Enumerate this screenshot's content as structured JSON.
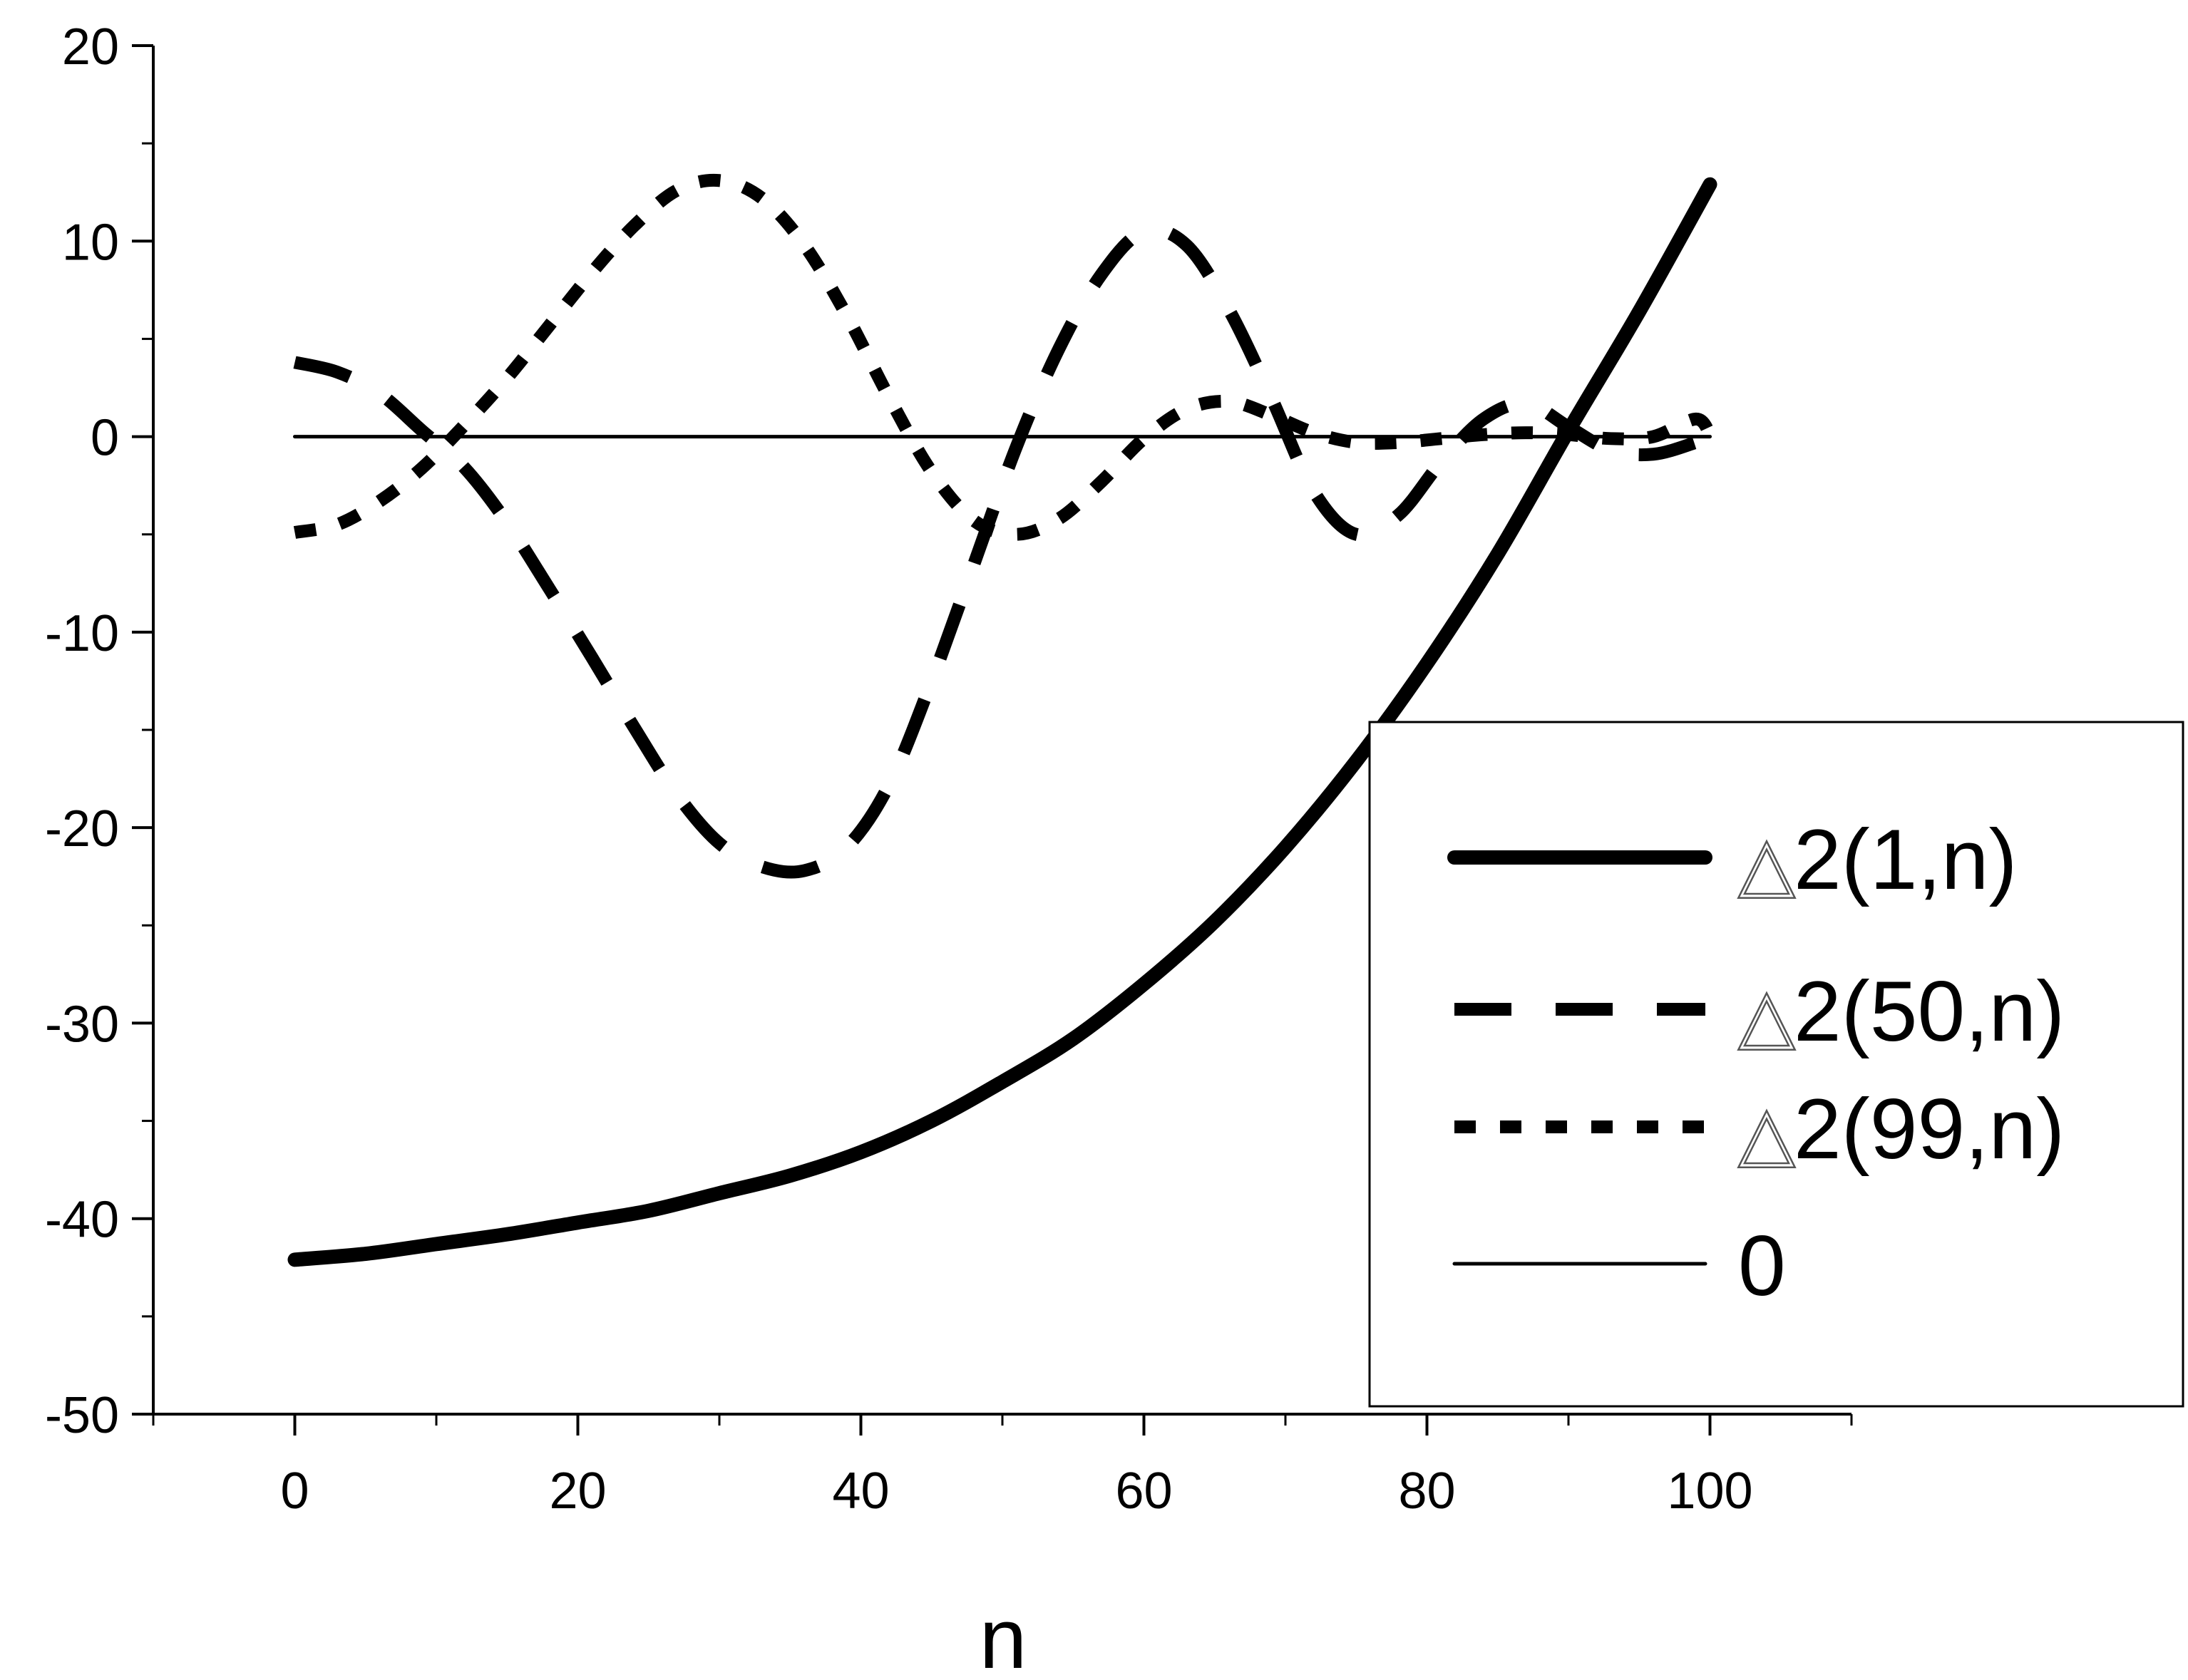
{
  "chart_data": {
    "type": "line",
    "xlabel": "n",
    "ylabel": "",
    "xlim": [
      -10,
      110
    ],
    "ylim": [
      -50,
      20
    ],
    "xticks": [
      0,
      20,
      40,
      60,
      80,
      100
    ],
    "xtick_labels": [
      "0",
      "20",
      "40",
      "60",
      "80",
      "100"
    ],
    "yticks": [
      20,
      10,
      0,
      -10,
      -20,
      -30,
      -40,
      -50
    ],
    "ytick_labels": [
      "20",
      "10",
      "0",
      "-10",
      "-20",
      "-30",
      "-40",
      "-50"
    ],
    "grid": false,
    "legend_position": "lower-right",
    "series": [
      {
        "name": "2(1,n)",
        "legend_symbol": "△",
        "style": "solid-thick",
        "x": [
          0,
          5,
          10,
          15,
          20,
          25,
          30,
          35,
          40,
          45,
          50,
          55,
          60,
          65,
          70,
          75,
          80,
          85,
          90,
          95,
          100
        ],
        "y": [
          -42.1,
          -41.8,
          -41.3,
          -40.8,
          -40.2,
          -39.6,
          -38.7,
          -37.8,
          -36.6,
          -35.0,
          -33.0,
          -30.8,
          -28.0,
          -24.8,
          -21.0,
          -16.6,
          -11.6,
          -6.0,
          0.3,
          6.4,
          12.9
        ]
      },
      {
        "name": "2(50,n)",
        "legend_symbol": "△",
        "style": "long-dash",
        "x": [
          0,
          3,
          6,
          9,
          12,
          15,
          18,
          21,
          24,
          27,
          30,
          33,
          36,
          39,
          42,
          45,
          48,
          51,
          54,
          57,
          60,
          63,
          66,
          69,
          72,
          75,
          78,
          81,
          84,
          87,
          90,
          93,
          96,
          99,
          100
        ],
        "y": [
          3.8,
          3.3,
          2.2,
          0.3,
          -1.6,
          -4.4,
          -7.8,
          -11.3,
          -14.9,
          -18.3,
          -20.8,
          -22.0,
          -22.2,
          -21.0,
          -17.8,
          -12.5,
          -6.5,
          -0.5,
          4.5,
          8.3,
          10.5,
          9.8,
          6.5,
          2.0,
          -2.8,
          -5.0,
          -4.0,
          -1.3,
          0.9,
          1.7,
          0.5,
          -0.7,
          -0.9,
          -0.3,
          0.0
        ]
      },
      {
        "name": "2(99,n)",
        "legend_symbol": "△",
        "style": "short-dash",
        "x": [
          0,
          3,
          6,
          9,
          12,
          15,
          18,
          21,
          24,
          27,
          30,
          33,
          36,
          39,
          42,
          45,
          48,
          51,
          54,
          57,
          60,
          63,
          66,
          69,
          72,
          75,
          78,
          81,
          84,
          87,
          90,
          93,
          96,
          99,
          100
        ],
        "y": [
          -4.9,
          -4.5,
          -3.3,
          -1.6,
          0.6,
          3.0,
          5.7,
          8.4,
          10.8,
          12.6,
          13.1,
          12.2,
          9.8,
          6.2,
          2.0,
          -1.8,
          -4.3,
          -5.0,
          -4.2,
          -2.3,
          -0.1,
          1.4,
          1.8,
          1.1,
          0.2,
          -0.3,
          -0.3,
          -0.1,
          0.1,
          0.2,
          0.1,
          -0.1,
          0.0,
          0.9,
          0.1
        ]
      },
      {
        "name": "0",
        "style": "solid-thin",
        "x": [
          0,
          100
        ],
        "y": [
          0,
          0
        ]
      }
    ]
  }
}
